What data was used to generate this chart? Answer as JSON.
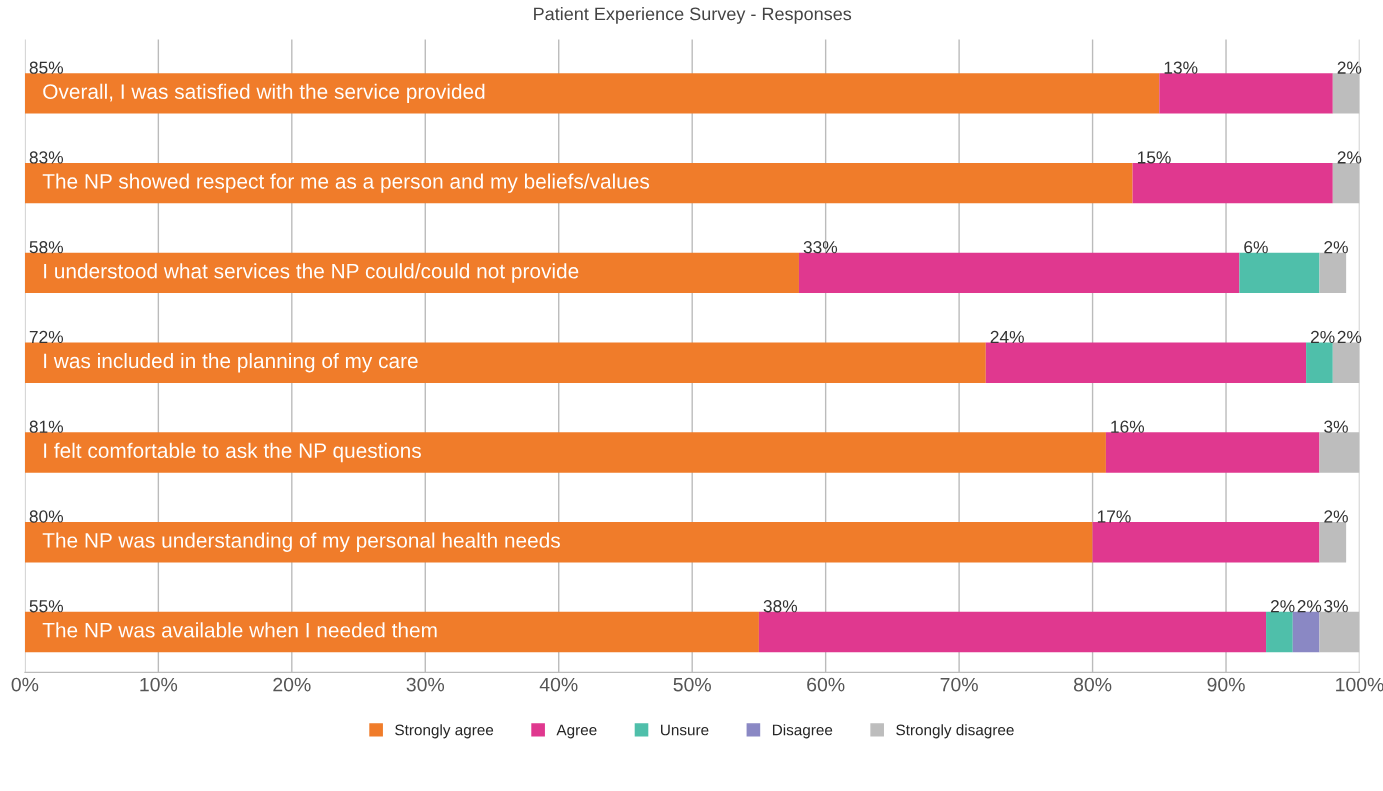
{
  "chart_data": {
    "type": "bar",
    "orientation": "horizontal",
    "stacked": true,
    "title": "Patient Experience Survey - Responses",
    "categories": [
      "Overall, I was satisfied with the service provided",
      "The NP showed respect for me as a person and my beliefs/values",
      "I understood what services the NP could/could not provide",
      "I was included in the planning of my care",
      "I felt comfortable to ask the NP questions",
      "The NP was understanding of my personal health needs",
      "The NP was available when I needed them"
    ],
    "series": [
      {
        "name": "Strongly agree",
        "color": "#f07c2a",
        "values": [
          85,
          83,
          58,
          72,
          81,
          80,
          55
        ],
        "value_labels": [
          "85%",
          "83%",
          "58%",
          "72%",
          "81%",
          "80%",
          "55%"
        ]
      },
      {
        "name": "Agree",
        "color": "#e0388f",
        "values": [
          13,
          15,
          33,
          24,
          16,
          17,
          38
        ],
        "value_labels": [
          "13%",
          "15%",
          "33%",
          "24%",
          "16%",
          "17%",
          "38%"
        ]
      },
      {
        "name": "Unsure",
        "color": "#4fbfaa",
        "values": [
          0,
          0,
          6,
          2,
          0,
          0,
          2
        ],
        "value_labels": [
          null,
          null,
          "6%",
          "2%",
          null,
          null,
          "2%"
        ]
      },
      {
        "name": "Disagree",
        "color": "#8a88c4",
        "values": [
          0,
          0,
          0,
          0,
          0,
          0,
          2
        ],
        "value_labels": [
          null,
          null,
          null,
          null,
          null,
          null,
          "2%"
        ]
      },
      {
        "name": "Strongly disagree",
        "color": "#bdbdbd",
        "values": [
          2,
          2,
          2,
          2,
          3,
          2,
          3
        ],
        "value_labels": [
          "2%",
          "2%",
          "2%",
          "2%",
          "3%",
          "2%",
          "3%"
        ]
      }
    ],
    "xlim": [
      0,
      100
    ],
    "xticks": [
      {
        "value": 0,
        "label": "0%"
      },
      {
        "value": 10,
        "label": "10%"
      },
      {
        "value": 20,
        "label": "20%"
      },
      {
        "value": 30,
        "label": "30%"
      },
      {
        "value": 40,
        "label": "40%"
      },
      {
        "value": 50,
        "label": "50%"
      },
      {
        "value": 60,
        "label": "60%"
      },
      {
        "value": 70,
        "label": "70%"
      },
      {
        "value": 80,
        "label": "80%"
      },
      {
        "value": 90,
        "label": "90%"
      },
      {
        "value": 100,
        "label": "100%"
      }
    ],
    "tick_labels": "x",
    "grid": "x",
    "legend": "bottom"
  }
}
